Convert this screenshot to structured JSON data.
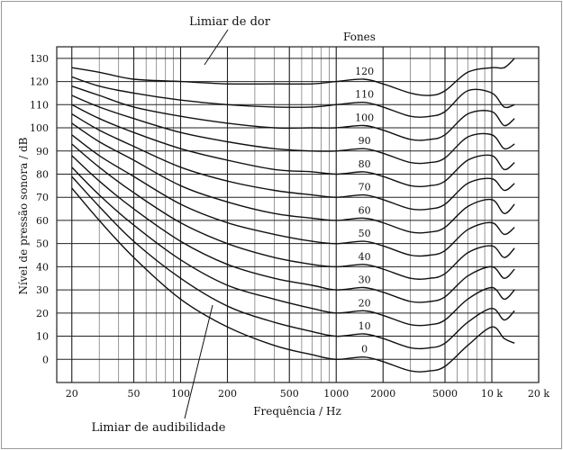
{
  "chart_data": {
    "type": "line",
    "title": "",
    "xlabel": "Frequência / Hz",
    "ylabel": "Nível de pressão sonora / dB",
    "x_scale": "log",
    "xlim": [
      16,
      20000
    ],
    "ylim": [
      -10,
      135
    ],
    "x_tick_values": [
      20,
      50,
      100,
      200,
      500,
      1000,
      2000,
      5000,
      10000,
      20000
    ],
    "x_tick_labels": [
      "20",
      "50",
      "100",
      "200",
      "500",
      "1000",
      "2000",
      "5000",
      "10 k",
      "20 k"
    ],
    "y_ticks": [
      0,
      10,
      20,
      30,
      40,
      50,
      60,
      70,
      80,
      90,
      100,
      110,
      120,
      130
    ],
    "grid": true,
    "legend_title": "Fones",
    "annotations": {
      "threshold_pain": "Limiar de dor",
      "threshold_hearing": "Limiar de audibilidade"
    },
    "series": [
      {
        "name": "0",
        "x": [
          20,
          30,
          50,
          100,
          200,
          400,
          700,
          1000,
          1500,
          2000,
          3000,
          4000,
          5000,
          7000,
          10000,
          12000,
          14000
        ],
        "y": [
          74,
          60,
          44,
          26,
          14,
          6,
          2,
          0,
          1,
          -1,
          -5,
          -5,
          -3,
          6,
          14,
          9,
          7
        ]
      },
      {
        "name": "10",
        "x": [
          20,
          30,
          50,
          100,
          200,
          400,
          700,
          1000,
          1500,
          2000,
          3000,
          4000,
          5000,
          7000,
          10000,
          12000,
          14000
        ],
        "y": [
          79,
          66,
          51,
          35,
          23,
          16,
          12,
          10,
          11,
          9,
          5,
          5,
          7,
          16,
          22,
          17,
          21
        ]
      },
      {
        "name": "20",
        "x": [
          20,
          30,
          50,
          100,
          200,
          400,
          700,
          1000,
          1500,
          2000,
          3000,
          4000,
          5000,
          7000,
          10000,
          12000,
          14000
        ],
        "y": [
          83,
          71,
          58,
          43,
          32,
          26,
          22,
          20,
          21,
          19,
          15,
          15,
          17,
          26,
          31,
          26,
          30
        ]
      },
      {
        "name": "30",
        "x": [
          20,
          30,
          50,
          100,
          200,
          400,
          700,
          1000,
          1500,
          2000,
          3000,
          4000,
          5000,
          7000,
          10000,
          12000,
          14000
        ],
        "y": [
          88,
          77,
          65,
          51,
          41,
          35,
          32,
          30,
          31,
          29,
          25,
          25,
          27,
          36,
          40,
          35,
          39
        ]
      },
      {
        "name": "40",
        "x": [
          20,
          30,
          50,
          100,
          200,
          400,
          700,
          1000,
          1500,
          2000,
          3000,
          4000,
          5000,
          7000,
          10000,
          12000,
          14000
        ],
        "y": [
          93,
          83,
          72,
          59,
          50,
          44,
          41,
          40,
          41,
          39,
          35,
          35,
          37,
          46,
          49,
          44,
          48
        ]
      },
      {
        "name": "50",
        "x": [
          20,
          30,
          50,
          100,
          200,
          400,
          700,
          1000,
          1500,
          2000,
          3000,
          4000,
          5000,
          7000,
          10000,
          12000,
          14000
        ],
        "y": [
          97,
          88,
          79,
          67,
          59,
          54,
          51,
          50,
          51,
          49,
          45,
          45,
          47,
          56,
          59,
          54,
          57
        ]
      },
      {
        "name": "60",
        "x": [
          20,
          30,
          50,
          100,
          200,
          400,
          700,
          1000,
          1500,
          2000,
          3000,
          4000,
          5000,
          7000,
          10000,
          12000,
          14000
        ],
        "y": [
          102,
          94,
          86,
          75,
          68,
          63,
          61,
          60,
          61,
          59,
          55,
          55,
          57,
          66,
          69,
          63,
          67
        ]
      },
      {
        "name": "70",
        "x": [
          20,
          30,
          50,
          100,
          200,
          400,
          700,
          1000,
          1500,
          2000,
          3000,
          4000,
          5000,
          7000,
          10000,
          12000,
          14000
        ],
        "y": [
          106,
          99,
          92,
          83,
          77,
          73,
          71,
          70,
          71,
          69,
          65,
          65,
          67,
          76,
          78,
          73,
          76
        ]
      },
      {
        "name": "80",
        "x": [
          20,
          30,
          50,
          100,
          200,
          400,
          700,
          1000,
          1500,
          2000,
          3000,
          4000,
          5000,
          7000,
          10000,
          12000,
          14000
        ],
        "y": [
          110,
          104,
          98,
          91,
          86,
          82,
          81,
          80,
          81,
          79,
          75,
          75,
          77,
          86,
          88,
          82,
          85
        ]
      },
      {
        "name": "90",
        "x": [
          20,
          30,
          50,
          100,
          200,
          400,
          700,
          1000,
          1500,
          2000,
          3000,
          4000,
          5000,
          7000,
          10000,
          12000,
          14000
        ],
        "y": [
          114,
          109,
          104,
          98,
          94,
          91,
          90,
          90,
          91,
          89,
          85,
          85,
          87,
          96,
          97,
          91,
          93
        ]
      },
      {
        "name": "100",
        "x": [
          20,
          30,
          50,
          100,
          200,
          400,
          700,
          1000,
          1500,
          2000,
          3000,
          4000,
          5000,
          7000,
          10000,
          12000,
          14000
        ],
        "y": [
          118,
          114,
          109,
          105,
          102,
          100,
          100,
          100,
          101,
          99,
          95,
          95,
          97,
          106,
          107,
          101,
          104
        ]
      },
      {
        "name": "110",
        "x": [
          20,
          30,
          50,
          100,
          200,
          400,
          700,
          1000,
          1500,
          2000,
          3000,
          4000,
          5000,
          7000,
          10000,
          12000,
          14000
        ],
        "y": [
          122,
          118,
          115,
          112,
          110,
          109,
          109,
          110,
          111,
          109,
          105,
          105,
          107,
          116,
          115,
          109,
          110
        ]
      },
      {
        "name": "120",
        "x": [
          20,
          30,
          50,
          100,
          200,
          400,
          700,
          1000,
          1500,
          2000,
          3000,
          4000,
          5000,
          7000,
          10000,
          12000,
          14000
        ],
        "y": [
          126,
          124,
          121,
          120,
          119,
          119,
          119,
          120,
          121,
          119,
          115,
          114,
          116,
          124,
          126,
          126,
          130
        ]
      }
    ]
  }
}
